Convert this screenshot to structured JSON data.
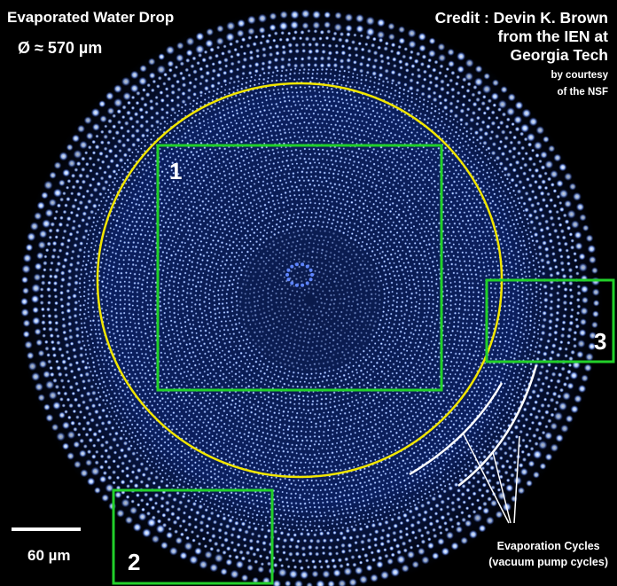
{
  "title": "Evaporated Water Drop",
  "diameter": "Ø ≈ 570 µm",
  "credit": {
    "line1": "Credit : Devin K. Brown",
    "line2": "from the IEN at",
    "line3": "Georgia Tech",
    "line4": "by courtesy",
    "line5": "of the NSF"
  },
  "regions": {
    "r1": "1",
    "r2": "2",
    "r3": "3"
  },
  "scale_label": "60 µm",
  "annotation": {
    "line1": "Evaporation Cycles",
    "line2": "(vacuum pump cycles)"
  },
  "colors": {
    "background": "#000000",
    "droplet": "#8fb4ff",
    "circle": "#f2e600",
    "box": "#22d02a",
    "text": "#ffffff"
  }
}
